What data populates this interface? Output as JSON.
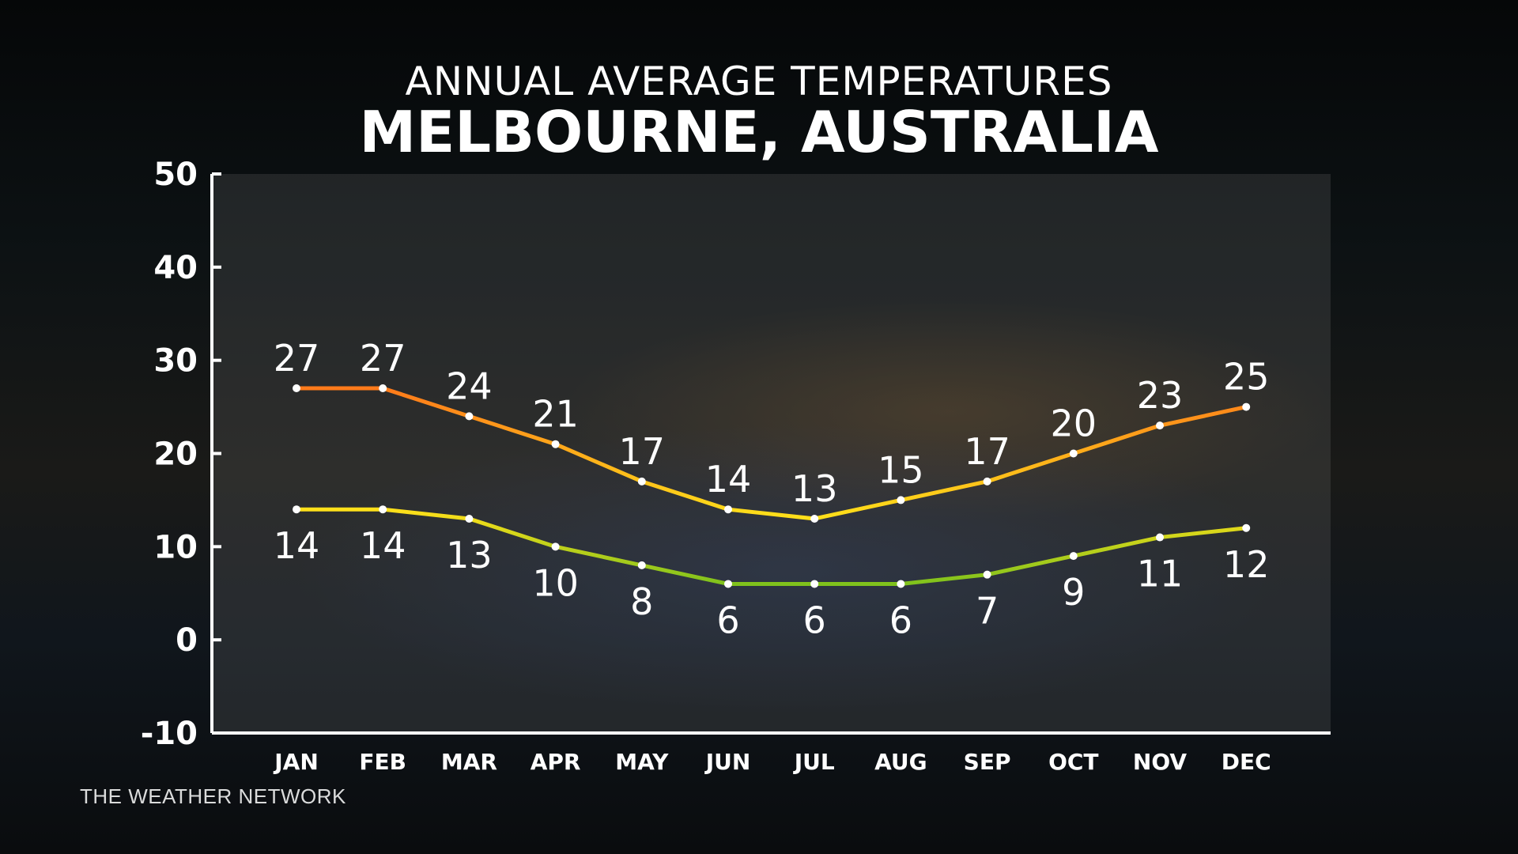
{
  "title": "ANNUAL AVERAGE TEMPERATURES",
  "subtitle": "MELBOURNE, AUSTRALIA",
  "brand": "THE WEATHER NETWORK",
  "chart_data": {
    "type": "line",
    "categories": [
      "JAN",
      "FEB",
      "MAR",
      "APR",
      "MAY",
      "JUN",
      "JUL",
      "AUG",
      "SEP",
      "OCT",
      "NOV",
      "DEC"
    ],
    "ylim": [
      -10,
      50
    ],
    "yticks": [
      50,
      40,
      30,
      20,
      10,
      0,
      -10
    ],
    "grid": false,
    "series": [
      {
        "values": [
          27,
          27,
          24,
          21,
          17,
          14,
          13,
          15,
          17,
          20,
          23,
          25
        ],
        "color_hot": "#ff7a1a",
        "color_cool": "#ffe01a",
        "label_position": "above"
      },
      {
        "values": [
          14,
          14,
          13,
          10,
          8,
          6,
          6,
          6,
          7,
          9,
          11,
          12
        ],
        "color_hot": "#ffe01a",
        "color_cool": "#7fc21c",
        "label_position": "below"
      }
    ]
  }
}
